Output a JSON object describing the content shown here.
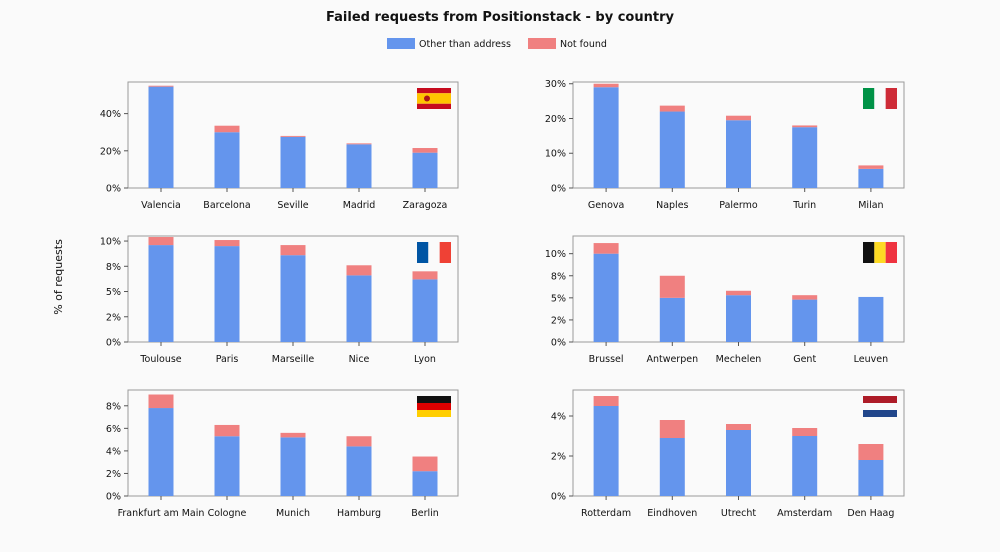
{
  "chart_data": {
    "type": "bar",
    "stacked": true,
    "title": "Failed requests from Positionstack - by country",
    "ylabel": "% of requests",
    "legend": {
      "placement": "top-center"
    },
    "series_names": [
      "Other than address",
      "Not found"
    ],
    "colors": {
      "other": "#6495ed",
      "notfound": "#f08080"
    },
    "panels": [
      {
        "flag": "spain-flag",
        "categories": [
          "Valencia",
          "Barcelona",
          "Seville",
          "Madrid",
          "Zaragoza"
        ],
        "series": [
          {
            "name": "Other than address",
            "values": [
              54.5,
              30,
              27.5,
              23.5,
              19
            ]
          },
          {
            "name": "Not found",
            "values": [
              0.5,
              3.5,
              0.5,
              0.5,
              2.5
            ]
          }
        ],
        "ylim": [
          0,
          57
        ],
        "yticks": [
          0,
          20,
          40
        ],
        "ytick_labels": [
          "0%",
          "20%",
          "40%"
        ]
      },
      {
        "flag": "italy-flag",
        "categories": [
          "Genova",
          "Naples",
          "Palermo",
          "Turin",
          "Milan"
        ],
        "series": [
          {
            "name": "Other than address",
            "values": [
              29,
              22,
              19.5,
              17.5,
              5.5
            ]
          },
          {
            "name": "Not found",
            "values": [
              1,
              1.7,
              1.3,
              0.5,
              1
            ]
          }
        ],
        "ylim": [
          0,
          30.5
        ],
        "yticks": [
          0,
          10,
          20,
          30
        ],
        "ytick_labels": [
          "0%",
          "10%",
          "20%",
          "30%"
        ]
      },
      {
        "flag": "france-flag",
        "categories": [
          "Toulouse",
          "Paris",
          "Marseille",
          "Nice",
          "Lyon"
        ],
        "series": [
          {
            "name": "Other than address",
            "values": [
              9.6,
              9.5,
              8.6,
              6.6,
              6.2
            ]
          },
          {
            "name": "Not found",
            "values": [
              0.8,
              0.6,
              1,
              1,
              0.8
            ]
          }
        ],
        "ylim": [
          0,
          10.5
        ],
        "yticks": [
          0,
          2.5,
          5,
          7.5,
          10
        ],
        "ytick_labels": [
          "0%",
          "2%",
          "5%",
          "8%",
          "10%"
        ]
      },
      {
        "flag": "belgium-flag",
        "categories": [
          "Brussel",
          "Antwerpen",
          "Mechelen",
          "Gent",
          "Leuven"
        ],
        "series": [
          {
            "name": "Other than address",
            "values": [
              10,
              5,
              5.3,
              4.8,
              5.1
            ]
          },
          {
            "name": "Not found",
            "values": [
              1.2,
              2.5,
              0.5,
              0.5,
              0
            ]
          }
        ],
        "ylim": [
          0,
          12
        ],
        "yticks": [
          0,
          2.5,
          5,
          7.5,
          10
        ],
        "ytick_labels": [
          "0%",
          "2%",
          "5%",
          "8%",
          "10%"
        ]
      },
      {
        "flag": "germany-flag",
        "categories": [
          "Frankfurt am Main",
          "Cologne",
          "Munich",
          "Hamburg",
          "Berlin"
        ],
        "series": [
          {
            "name": "Other than address",
            "values": [
              7.8,
              5.3,
              5.2,
              4.4,
              2.2
            ]
          },
          {
            "name": "Not found",
            "values": [
              1.2,
              1,
              0.4,
              0.9,
              1.3
            ]
          }
        ],
        "ylim": [
          0,
          9.4
        ],
        "yticks": [
          0,
          2,
          4,
          6,
          8
        ],
        "ytick_labels": [
          "0%",
          "2%",
          "4%",
          "6%",
          "8%"
        ]
      },
      {
        "flag": "netherlands-flag",
        "categories": [
          "Rotterdam",
          "Eindhoven",
          "Utrecht",
          "Amsterdam",
          "Den Haag"
        ],
        "series": [
          {
            "name": "Other than address",
            "values": [
              4.5,
              2.9,
              3.3,
              3,
              1.8
            ]
          },
          {
            "name": "Not found",
            "values": [
              0.5,
              0.9,
              0.3,
              0.4,
              0.8
            ]
          }
        ],
        "ylim": [
          0,
          5.3
        ],
        "yticks": [
          0,
          2,
          4
        ],
        "ytick_labels": [
          "0%",
          "2%",
          "4%"
        ]
      }
    ]
  }
}
